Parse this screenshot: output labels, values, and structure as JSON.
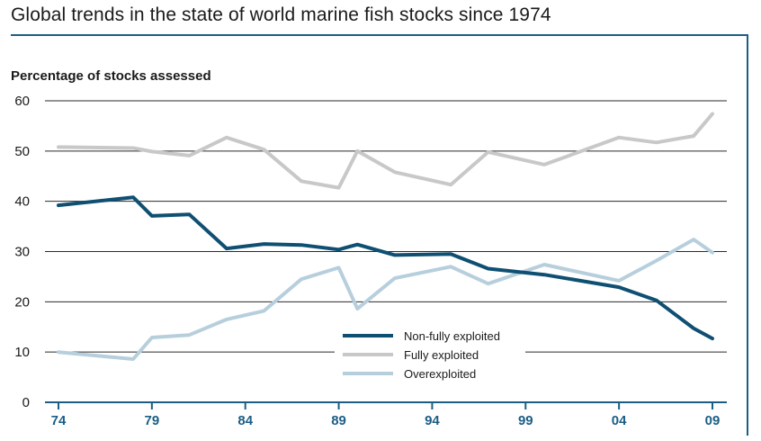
{
  "title": "Global trends in the state of world marine fish stocks since 1974",
  "chart_data": {
    "type": "line",
    "title": "Global trends in the state of world marine fish stocks since 1974",
    "ylabel": "Percentage of stocks assessed",
    "xlabel": "",
    "ylim": [
      0,
      60
    ],
    "xlim": [
      1974,
      2009
    ],
    "yticks": [
      0,
      10,
      20,
      30,
      40,
      50,
      60
    ],
    "xticks": [
      {
        "value": 1974,
        "label": "74"
      },
      {
        "value": 1979,
        "label": "79"
      },
      {
        "value": 1984,
        "label": "84"
      },
      {
        "value": 1989,
        "label": "89"
      },
      {
        "value": 1994,
        "label": "94"
      },
      {
        "value": 1999,
        "label": "99"
      },
      {
        "value": 2004,
        "label": "04"
      },
      {
        "value": 2009,
        "label": "09"
      }
    ],
    "grid": true,
    "legend_position": "bottom-center",
    "series": [
      {
        "name": "Non-fully exploited",
        "color": "#0e4f72",
        "points": [
          [
            1974,
            39.2
          ],
          [
            1978,
            40.8
          ],
          [
            1979,
            37.1
          ],
          [
            1981,
            37.4
          ],
          [
            1983,
            30.6
          ],
          [
            1985,
            31.5
          ],
          [
            1987,
            31.3
          ],
          [
            1989,
            30.4
          ],
          [
            1990,
            31.4
          ],
          [
            1992,
            29.3
          ],
          [
            1995,
            29.5
          ],
          [
            1997,
            26.6
          ],
          [
            2000,
            25.4
          ],
          [
            2004,
            22.9
          ],
          [
            2006,
            20.3
          ],
          [
            2008,
            14.7
          ],
          [
            2009,
            12.7
          ]
        ]
      },
      {
        "name": "Fully exploited",
        "color": "#c8c8c8",
        "points": [
          [
            1974,
            50.8
          ],
          [
            1978,
            50.6
          ],
          [
            1979,
            49.9
          ],
          [
            1981,
            49.1
          ],
          [
            1983,
            52.7
          ],
          [
            1985,
            50.3
          ],
          [
            1987,
            44.0
          ],
          [
            1989,
            42.7
          ],
          [
            1990,
            50.0
          ],
          [
            1992,
            45.8
          ],
          [
            1995,
            43.3
          ],
          [
            1997,
            49.8
          ],
          [
            2000,
            47.3
          ],
          [
            2004,
            52.7
          ],
          [
            2006,
            51.7
          ],
          [
            2008,
            53.0
          ],
          [
            2009,
            57.4
          ]
        ]
      },
      {
        "name": "Overexploited",
        "color": "#b7cfdd",
        "points": [
          [
            1974,
            10.0
          ],
          [
            1978,
            8.6
          ],
          [
            1979,
            12.9
          ],
          [
            1981,
            13.4
          ],
          [
            1983,
            16.5
          ],
          [
            1985,
            18.2
          ],
          [
            1987,
            24.5
          ],
          [
            1989,
            26.8
          ],
          [
            1990,
            18.6
          ],
          [
            1992,
            24.7
          ],
          [
            1995,
            27.0
          ],
          [
            1997,
            23.6
          ],
          [
            2000,
            27.4
          ],
          [
            2004,
            24.2
          ],
          [
            2006,
            28.2
          ],
          [
            2008,
            32.4
          ],
          [
            2009,
            29.8
          ]
        ]
      }
    ]
  }
}
